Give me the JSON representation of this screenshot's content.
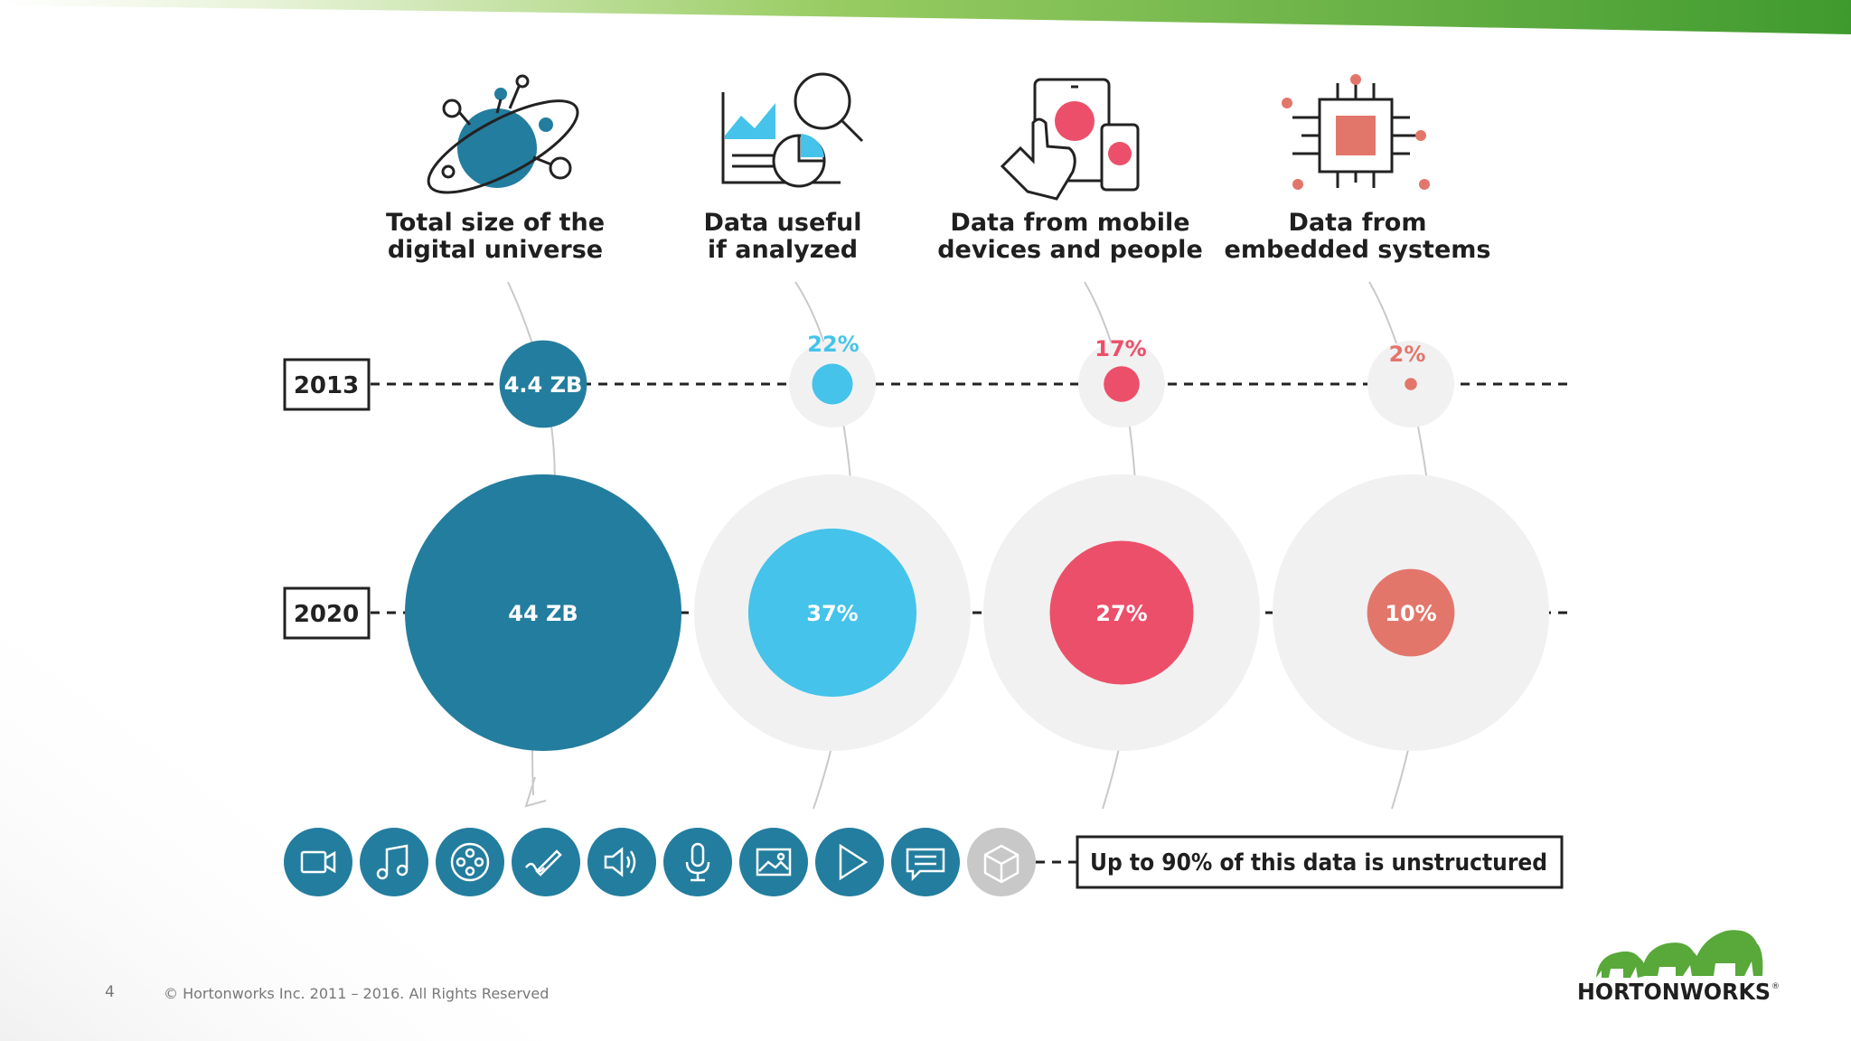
{
  "colors": {
    "teal_dark": "#237D9E",
    "cyan": "#45C3EA",
    "red": "#EC4F6A",
    "salmon": "#E3766B",
    "halo": "#F1F1F2",
    "grey_icon": "#C8C8C8",
    "brand_green": "#58A83A"
  },
  "chart_data": {
    "type": "bubble",
    "title": "",
    "rows": [
      "2013",
      "2020"
    ],
    "categories": [
      {
        "label_line1": "Total size of the",
        "label_line2": "digital universe",
        "icon": "planet-icon",
        "color": "#237D9E",
        "label_2013": "4.4 ZB",
        "label_2020": "44 ZB",
        "value_2013": 4.4,
        "value_2020": 44,
        "unit": "ZB"
      },
      {
        "label_line1": "Data useful",
        "label_line2": "if analyzed",
        "icon": "analytics-icon",
        "color": "#45C3EA",
        "label_2013": "22%",
        "label_2020": "37%",
        "value_2013": 22,
        "value_2020": 37,
        "unit": "%"
      },
      {
        "label_line1": "Data from mobile",
        "label_line2": "devices and people",
        "icon": "mobile-devices-icon",
        "color": "#EC4F6A",
        "label_2013": "17%",
        "label_2020": "27%",
        "value_2013": 17,
        "value_2020": 27,
        "unit": "%"
      },
      {
        "label_line1": "Data from",
        "label_line2": "embedded systems",
        "icon": "chip-icon",
        "color": "#E3766B",
        "label_2013": "2%",
        "label_2020": "10%",
        "value_2013": 2,
        "value_2020": 10,
        "unit": "%"
      }
    ]
  },
  "data_types": [
    {
      "icon": "video-camera-icon"
    },
    {
      "icon": "music-note-icon"
    },
    {
      "icon": "film-reel-icon"
    },
    {
      "icon": "pen-icon"
    },
    {
      "icon": "speaker-icon"
    },
    {
      "icon": "microphone-icon"
    },
    {
      "icon": "image-icon"
    },
    {
      "icon": "play-icon"
    },
    {
      "icon": "chat-icon"
    },
    {
      "icon": "cube-icon"
    }
  ],
  "unstructured_note": "Up to 90% of this data is unstructured",
  "footer": {
    "page_number": "4",
    "copyright": "© Hortonworks Inc. 2011 – 2016. All Rights Reserved"
  },
  "brand": {
    "logo_text": "HORTONWORKS",
    "logo_icon": "elephants-logo-icon"
  }
}
